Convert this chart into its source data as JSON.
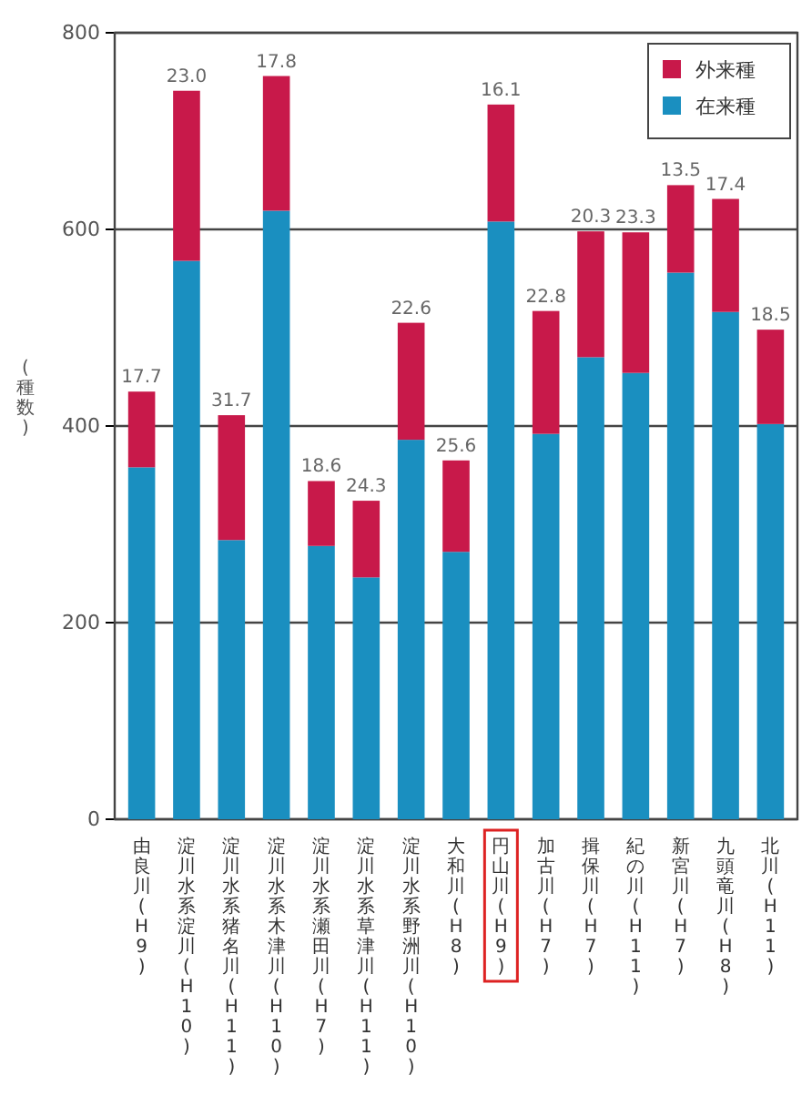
{
  "chart_data": {
    "type": "bar",
    "stacked": true,
    "ylabel": "(種数)",
    "categories": [
      "由良川(H9)",
      "淀川水系淀川(H10)",
      "淀川水系猪名川(H11)",
      "淀川水系木津川(H10)",
      "淀川水系瀬田川(H7)",
      "淀川水系草津川(H11)",
      "淀川水系野洲川(H10)",
      "大和川(H8)",
      "円山川(H9)",
      "加古川(H7)",
      "揖保川(H7)",
      "紀の川(H11)",
      "新宮川(H7)",
      "九頭竜川(H8)",
      "北川(H11)"
    ],
    "series": [
      {
        "name": "在来種",
        "color": "#1a8fc0",
        "values": [
          358,
          568,
          284,
          619,
          278,
          246,
          386,
          272,
          608,
          392,
          470,
          454,
          556,
          516,
          402
        ]
      },
      {
        "name": "外来種",
        "color": "#c8194a",
        "values": [
          77,
          173,
          127,
          137,
          66,
          78,
          119,
          93,
          119,
          125,
          128,
          143,
          89,
          115,
          96
        ]
      }
    ],
    "ylim": [
      0,
      800
    ],
    "yticks": [
      0,
      200,
      400,
      600,
      800
    ],
    "grid": "y",
    "legend": "top right",
    "annotations": [
      {
        "text": "17.7",
        "x": "由良川(H9)",
        "y": 435
      },
      {
        "text": "23.0",
        "x": "淀川水系淀川(H10)",
        "y": 741
      },
      {
        "text": "31.7",
        "x": "淀川水系猪名川(H11)",
        "y": 411
      },
      {
        "text": "17.8",
        "x": "淀川水系木津川(H10)",
        "y": 756
      },
      {
        "text": "18.6",
        "x": "淀川水系瀬田川(H7)",
        "y": 344
      },
      {
        "text": "24.3",
        "x": "淀川水系草津川(H11)",
        "y": 324
      },
      {
        "text": "22.6",
        "x": "淀川水系野洲川(H10)",
        "y": 505
      },
      {
        "text": "25.6",
        "x": "大和川(H8)",
        "y": 365
      },
      {
        "text": "16.1",
        "x": "円山川(H9)",
        "y": 727
      },
      {
        "text": "22.8",
        "x": "加古川(H7)",
        "y": 517
      },
      {
        "text": "20.3",
        "x": "揖保川(H7)",
        "y": 598
      },
      {
        "text": "23.3",
        "x": "紀の川(H11)",
        "y": 597
      },
      {
        "text": "13.5",
        "x": "新宮川(H7)",
        "y": 645
      },
      {
        "text": "17.4",
        "x": "九頭竜川(H8)",
        "y": 631
      },
      {
        "text": "18.5",
        "x": "北川(H11)",
        "y": 498
      }
    ]
  }
}
